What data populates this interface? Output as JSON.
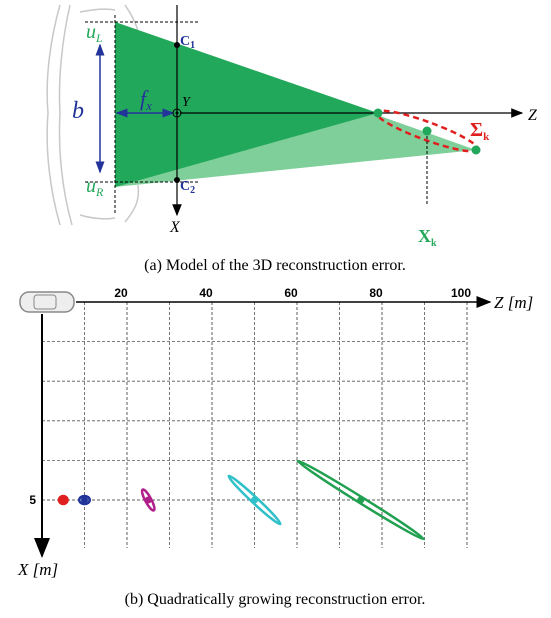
{
  "figure_a": {
    "u_left": {
      "main": "u",
      "sub": "L"
    },
    "u_right": {
      "main": "u",
      "sub": "R"
    },
    "baseline": "b",
    "focal": {
      "main": "f",
      "sub": "x"
    },
    "c1": {
      "main": "C",
      "sub": "1"
    },
    "c2": {
      "main": "C",
      "sub": "2"
    },
    "y_label": "Y",
    "z_label": "Z",
    "x_label": "X",
    "sigma": {
      "main": "Σ",
      "sub": "k"
    },
    "point": {
      "main": "X",
      "sub": "k"
    },
    "caption": "(a) Model of the 3D reconstruction error."
  },
  "chart_data": {
    "type": "scatter",
    "x_label": "Z [m]",
    "y_label": "X [m]",
    "xticks": [
      20,
      40,
      60,
      80,
      100
    ],
    "yticks": [
      5
    ],
    "xlim": [
      0,
      100
    ],
    "ylim": [
      0,
      5
    ],
    "series": [
      {
        "color": "#e02020",
        "x": [
          5
        ],
        "values": [
          5
        ]
      },
      {
        "color": "#223399",
        "x": [
          10
        ],
        "values": [
          5
        ]
      },
      {
        "color": "#b0208a",
        "x": [
          25
        ],
        "values": [
          5
        ]
      },
      {
        "color": "#30c0c8",
        "x": [
          50
        ],
        "values": [
          5
        ]
      },
      {
        "color": "#20a050",
        "x": [
          75
        ],
        "values": [
          5
        ]
      }
    ],
    "grid": true,
    "caption": "(b) Quadratically growing reconstruction error."
  }
}
